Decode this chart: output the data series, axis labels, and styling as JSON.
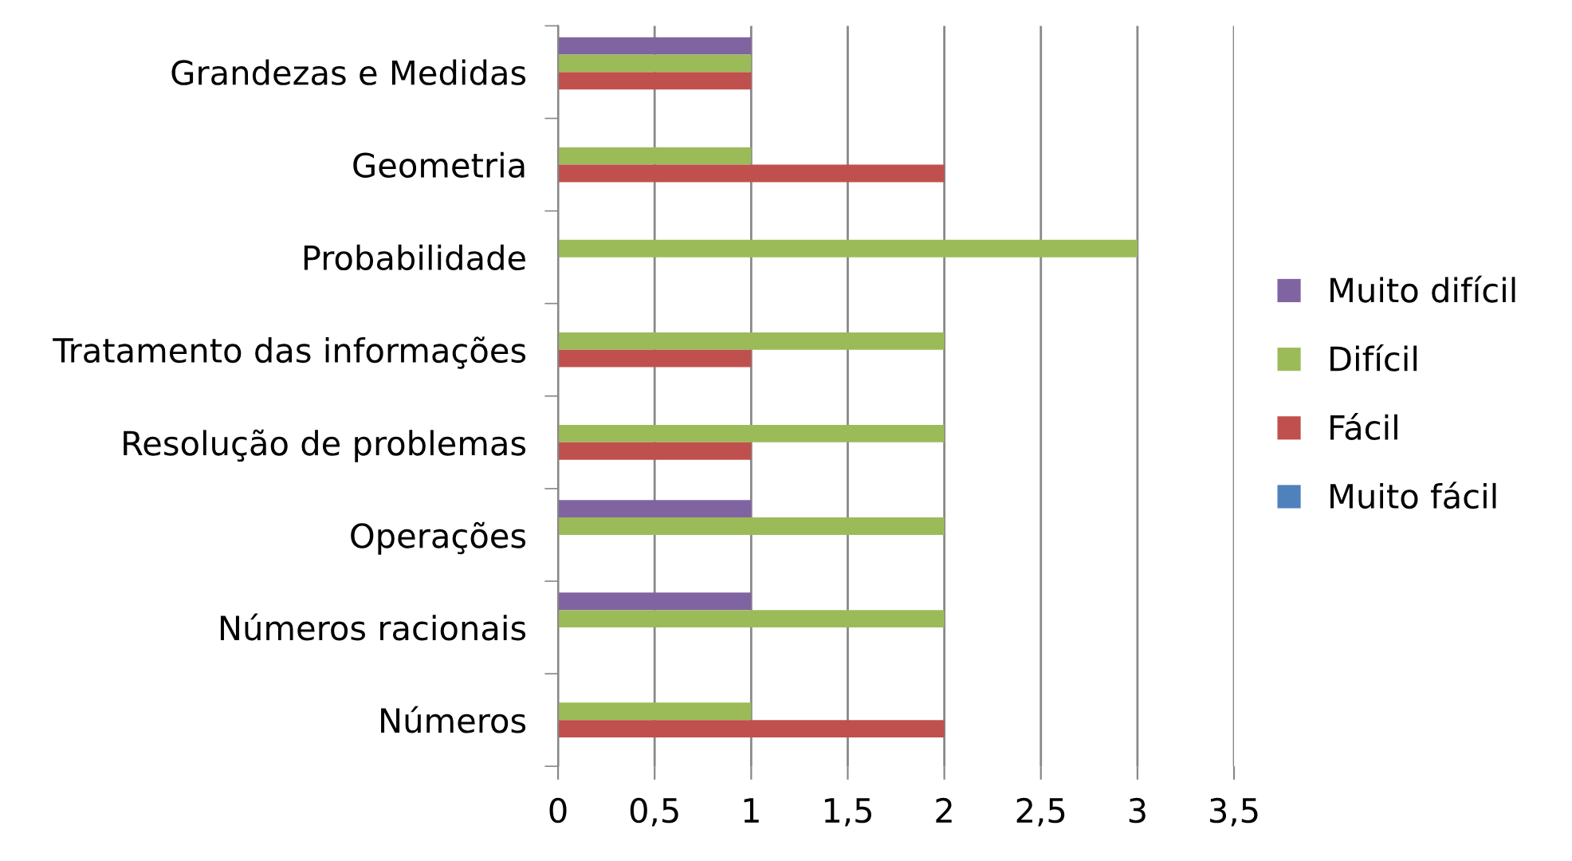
{
  "chart_data": {
    "type": "bar",
    "orientation": "horizontal",
    "categories": [
      "Grandezas e Medidas",
      "Geometria",
      "Probabilidade",
      "Tratamento das informações",
      "Resolução de problemas",
      "Operações",
      "Números racionais",
      "Números"
    ],
    "series": [
      {
        "name": "Muito difícil",
        "color": "#8064a2",
        "values": [
          1,
          0,
          0,
          0,
          0,
          1,
          1,
          0
        ]
      },
      {
        "name": "Difícil",
        "color": "#9bbb59",
        "values": [
          1,
          1,
          3,
          2,
          2,
          2,
          2,
          1
        ]
      },
      {
        "name": "Fácil",
        "color": "#c0504d",
        "values": [
          1,
          2,
          0,
          1,
          1,
          0,
          0,
          2
        ]
      },
      {
        "name": "Muito fácil",
        "color": "#4f81bd",
        "values": [
          0,
          0,
          0,
          0,
          0,
          0,
          0,
          0
        ]
      }
    ],
    "xlim": [
      0,
      3.5
    ],
    "xticks": [
      0,
      {
        "value": 0.5,
        "label": "0,5"
      },
      1,
      {
        "value": 1.5,
        "label": "1,5"
      },
      2,
      {
        "value": 2.5,
        "label": "2,5"
      },
      3,
      {
        "value": 3.5,
        "label": "3,5"
      }
    ],
    "grid": "x",
    "legend": "right"
  }
}
